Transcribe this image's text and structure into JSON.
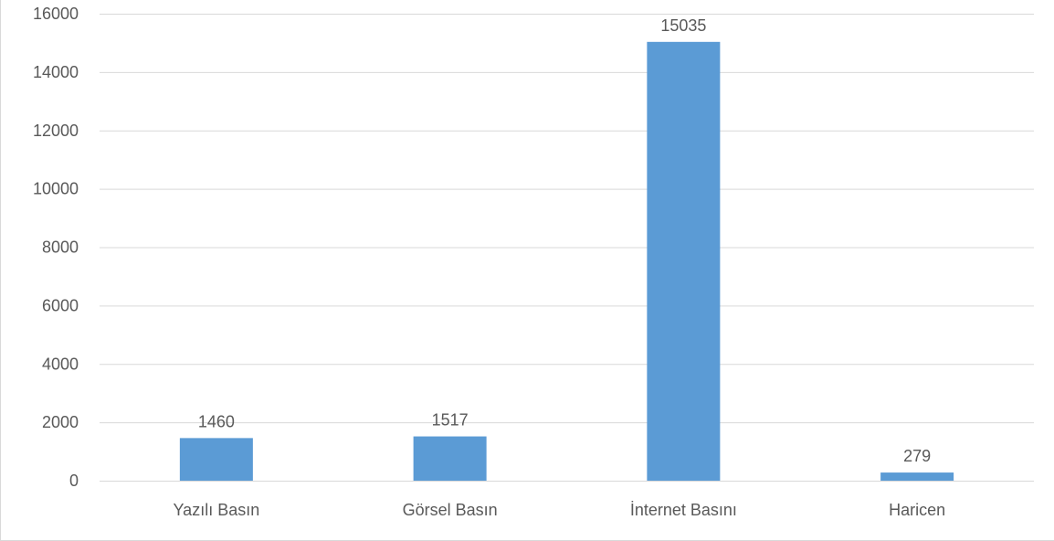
{
  "chart_data": {
    "type": "bar",
    "title": "",
    "xlabel": "",
    "ylabel": "",
    "categories": [
      "Yazılı Basın",
      "Görsel Basın",
      "İnternet Basını",
      "Haricen"
    ],
    "values": [
      1460,
      1517,
      15035,
      279
    ],
    "data_labels": [
      "1460",
      "1517",
      "15035",
      "279"
    ],
    "ylim": [
      0,
      16000
    ],
    "yticks": [
      0,
      2000,
      4000,
      6000,
      8000,
      10000,
      12000,
      14000,
      16000
    ],
    "ytick_labels": [
      "0",
      "2000",
      "4000",
      "6000",
      "8000",
      "10000",
      "12000",
      "14000",
      "16000"
    ],
    "grid": true,
    "legend": "none",
    "colors": {
      "bar": "#5b9bd5",
      "gridline": "#d9d9d9",
      "text": "#595959",
      "frame": "#d9d9d9"
    }
  }
}
